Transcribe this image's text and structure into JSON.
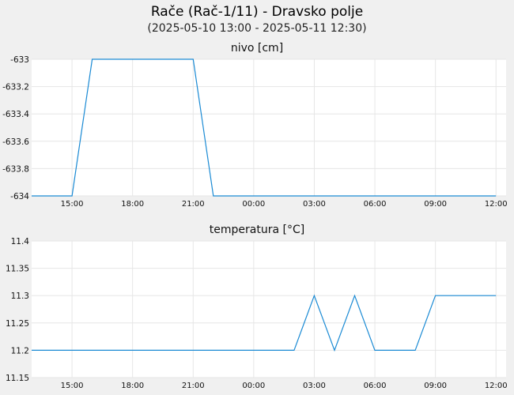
{
  "title": "Rače (Rač-1/11) - Dravsko polje",
  "subtitle": "(2025-05-10 13:00 - 2025-05-11 12:30)",
  "colors": {
    "series": "#1a8ad4",
    "background": "#f0f0f0",
    "plot": "#ffffff",
    "grid": "#e6e6e6"
  },
  "chart_data": [
    {
      "type": "line",
      "title": "nivo [cm]",
      "xlabel": "",
      "ylabel": "",
      "ylim": [
        -634,
        -633
      ],
      "yticks": [
        "-633",
        "-633.2",
        "-633.4",
        "-633.6",
        "-633.8",
        "-634"
      ],
      "ytick_values": [
        -633,
        -633.2,
        -633.4,
        -633.6,
        -633.8,
        -634
      ],
      "xticks": [
        "15:00",
        "18:00",
        "21:00",
        "00:00",
        "03:00",
        "06:00",
        "09:00",
        "12:00"
      ],
      "xtick_times": [
        "2025-05-10 15:00",
        "2025-05-10 18:00",
        "2025-05-10 21:00",
        "2025-05-11 00:00",
        "2025-05-11 03:00",
        "2025-05-11 06:00",
        "2025-05-11 09:00",
        "2025-05-11 12:00"
      ],
      "xlim": [
        "2025-05-10 13:00",
        "2025-05-11 12:30"
      ],
      "grid": true,
      "series": [
        {
          "x": [
            "2025-05-10 13:00",
            "2025-05-10 15:00",
            "2025-05-10 16:00",
            "2025-05-10 21:00",
            "2025-05-10 22:00",
            "2025-05-11 12:00"
          ],
          "y": [
            -634,
            -634,
            -633,
            -633,
            -634,
            -634
          ]
        }
      ]
    },
    {
      "type": "line",
      "title": "temperatura [°C]",
      "xlabel": "",
      "ylabel": "",
      "ylim": [
        11.15,
        11.4
      ],
      "yticks": [
        "11.4",
        "11.35",
        "11.3",
        "11.25",
        "11.2",
        "11.15"
      ],
      "ytick_values": [
        11.4,
        11.35,
        11.3,
        11.25,
        11.2,
        11.15
      ],
      "xticks": [
        "15:00",
        "18:00",
        "21:00",
        "00:00",
        "03:00",
        "06:00",
        "09:00",
        "12:00"
      ],
      "xtick_times": [
        "2025-05-10 15:00",
        "2025-05-10 18:00",
        "2025-05-10 21:00",
        "2025-05-11 00:00",
        "2025-05-11 03:00",
        "2025-05-11 06:00",
        "2025-05-11 09:00",
        "2025-05-11 12:00"
      ],
      "xlim": [
        "2025-05-10 13:00",
        "2025-05-11 12:30"
      ],
      "grid": true,
      "series": [
        {
          "x": [
            "2025-05-10 13:00",
            "2025-05-11 02:00",
            "2025-05-11 03:00",
            "2025-05-11 04:00",
            "2025-05-11 05:00",
            "2025-05-11 06:00",
            "2025-05-11 08:00",
            "2025-05-11 09:00",
            "2025-05-11 12:00"
          ],
          "y": [
            11.2,
            11.2,
            11.3,
            11.2,
            11.3,
            11.2,
            11.2,
            11.3,
            11.3
          ]
        }
      ]
    }
  ]
}
